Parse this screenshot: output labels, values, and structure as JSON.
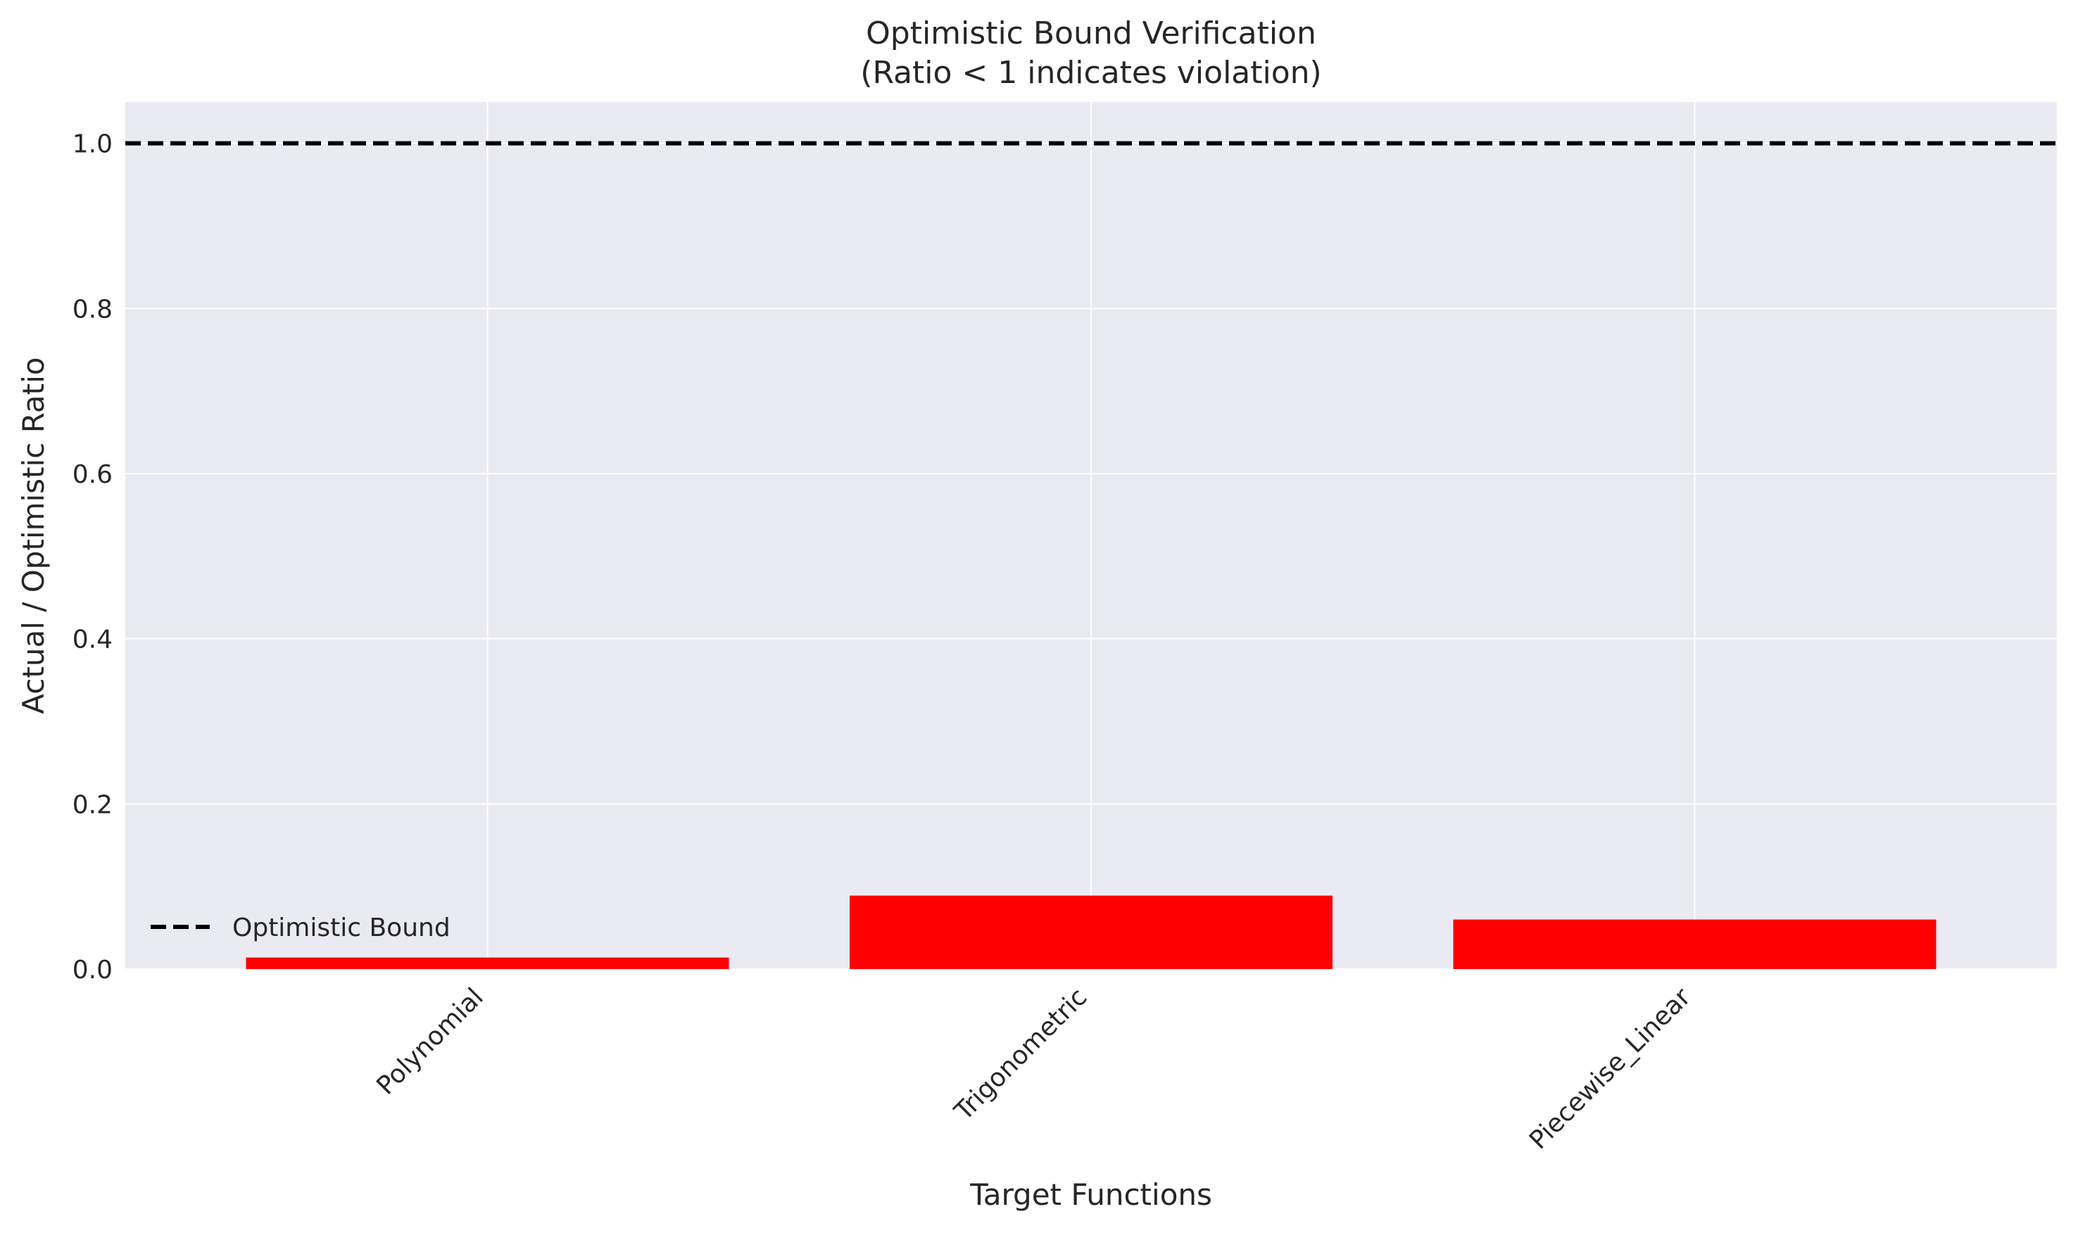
{
  "chart_data": {
    "type": "bar",
    "title": "Optimistic Bound Verification",
    "subtitle": "(Ratio < 1 indicates violation)",
    "xlabel": "Target Functions",
    "ylabel": "Actual / Optimistic Ratio",
    "categories": [
      "Polynomial",
      "Trigonometric",
      "Piecewise_Linear"
    ],
    "values": [
      0.014,
      0.089,
      0.06
    ],
    "ylim": [
      0,
      1.05
    ],
    "yticks": [
      "0.0",
      "0.2",
      "0.4",
      "0.6",
      "0.8",
      "1.0"
    ],
    "reference_line": {
      "value": 1.0,
      "style": "dashed",
      "color": "#000000",
      "label": "Optimistic Bound"
    },
    "bar_color": "#ff0000",
    "background_color": "#eaeaf2",
    "grid": true,
    "legend": {
      "position": "lower-left",
      "entries": [
        "Optimistic Bound"
      ]
    }
  }
}
